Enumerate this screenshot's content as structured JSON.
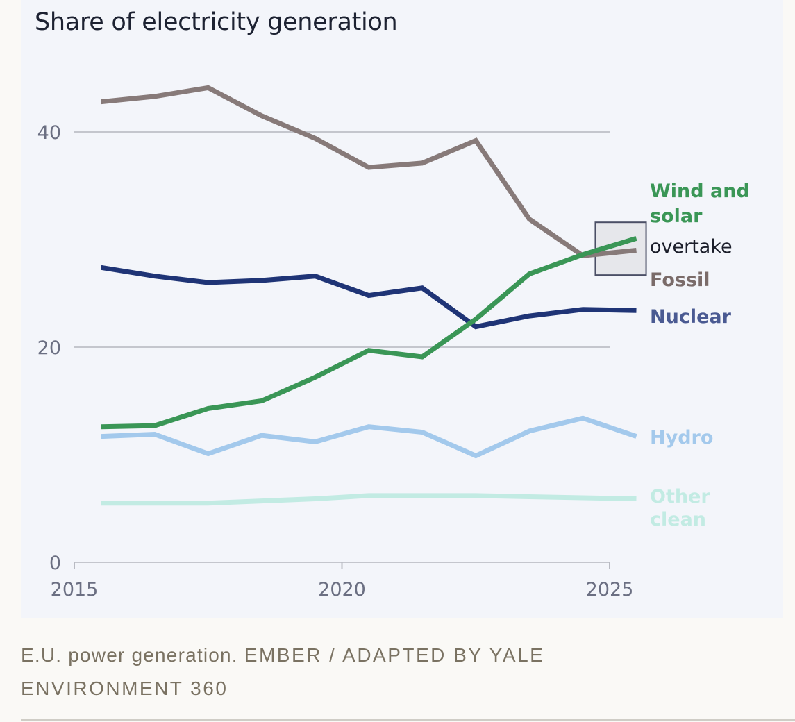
{
  "chart_data": {
    "type": "line",
    "title": "Share of electricity generation",
    "xlabel": "",
    "ylabel": "",
    "x": [
      2015,
      2016,
      2017,
      2018,
      2019,
      2020,
      2021,
      2022,
      2023,
      2024,
      2025
    ],
    "x_offset_years": 0.5,
    "xlim": [
      2015,
      2025.5
    ],
    "ylim": [
      0,
      44
    ],
    "xticks": [
      2015,
      2020,
      2025
    ],
    "yticks": [
      0,
      20,
      40
    ],
    "grid": "horizontal",
    "legend": "inline-right",
    "series": [
      {
        "name": "Fossil",
        "label": "Fossil",
        "color": "#877a79",
        "label_color": "#7a6b69",
        "values": [
          42.8,
          43.3,
          44.1,
          41.5,
          39.4,
          36.7,
          37.1,
          39.2,
          31.9,
          28.5,
          29.0
        ]
      },
      {
        "name": "Nuclear",
        "label": "Nuclear",
        "color": "#1f3476",
        "label_color": "#4a5a92",
        "values": [
          27.4,
          26.6,
          26.0,
          26.2,
          26.6,
          24.8,
          25.5,
          21.9,
          22.9,
          23.5,
          23.4
        ]
      },
      {
        "name": "Wind and solar",
        "label_lines": [
          "Wind and",
          "solar"
        ],
        "color": "#3a9656",
        "label_color": "#3a9656",
        "values": [
          12.6,
          12.7,
          14.3,
          15.0,
          17.2,
          19.7,
          19.1,
          22.6,
          26.8,
          28.6,
          30.1
        ]
      },
      {
        "name": "Hydro",
        "label": "Hydro",
        "color": "#a3c9ec",
        "label_color": "#a3c9ec",
        "values": [
          11.7,
          11.9,
          10.1,
          11.8,
          11.2,
          12.6,
          12.1,
          9.9,
          12.2,
          13.4,
          11.7
        ]
      },
      {
        "name": "Other clean",
        "label_lines": [
          "Other",
          "clean"
        ],
        "color": "#c2ebe3",
        "label_color": "#c2ebe3",
        "values": [
          5.5,
          5.5,
          5.5,
          5.7,
          5.9,
          6.2,
          6.2,
          6.2,
          6.1,
          6.0,
          5.9
        ]
      }
    ],
    "annotations": [
      {
        "text": "overtake",
        "highlight_years": [
          2024,
          2025
        ]
      }
    ]
  },
  "caption": {
    "text": "E.U. power generation.",
    "source": "Ember / Adapted by Yale Environment 360"
  }
}
